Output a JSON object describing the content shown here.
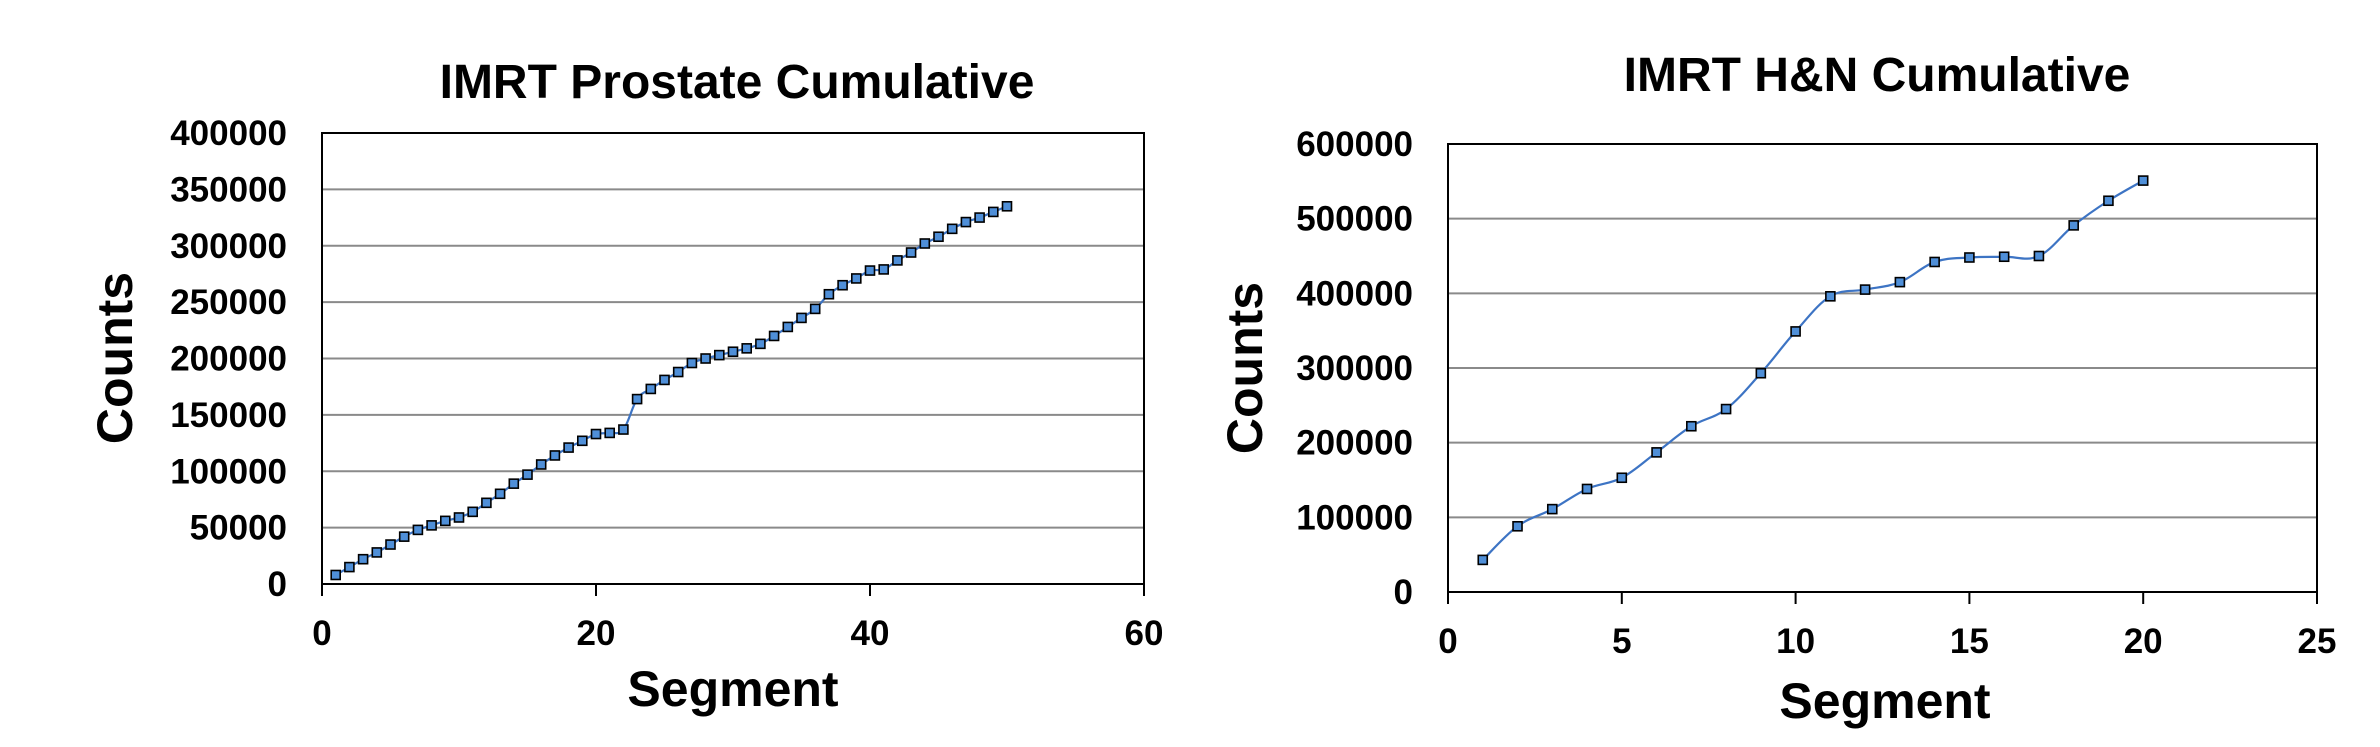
{
  "chart_data": [
    {
      "type": "line",
      "title": "IMRT Prostate Cumulative",
      "xlabel": "Segment",
      "ylabel": "Counts",
      "xlim": [
        0,
        60
      ],
      "ylim": [
        0,
        400000
      ],
      "xticks": [
        0,
        20,
        40,
        60
      ],
      "yticks": [
        0,
        50000,
        100000,
        150000,
        200000,
        250000,
        300000,
        350000,
        400000
      ],
      "xtick_labels": [
        "0",
        "20",
        "40",
        "60"
      ],
      "ytick_labels": [
        "0",
        "50000",
        "100000",
        "150000",
        "200000",
        "250000",
        "300000",
        "350000",
        "400000"
      ],
      "grid": "horizontal",
      "legend": "none",
      "series": [
        {
          "color": "#3d74c4",
          "marker_color": "#4f8fd8",
          "x": [
            1,
            2,
            3,
            4,
            5,
            6,
            7,
            8,
            9,
            10,
            11,
            12,
            13,
            14,
            15,
            16,
            17,
            18,
            19,
            20,
            21,
            22,
            23,
            24,
            25,
            26,
            27,
            28,
            29,
            30,
            31,
            32,
            33,
            34,
            35,
            36,
            37,
            38,
            39,
            40,
            41,
            42,
            43,
            44,
            45,
            46,
            47,
            48,
            49,
            50
          ],
          "y": [
            8000,
            15000,
            22000,
            28000,
            35000,
            42000,
            48000,
            52000,
            56000,
            59000,
            64000,
            72000,
            80000,
            89000,
            97000,
            106000,
            114000,
            121000,
            127000,
            133000,
            134000,
            137000,
            164000,
            173000,
            181000,
            188000,
            196000,
            200000,
            203000,
            206000,
            209000,
            213000,
            220000,
            228000,
            236000,
            244000,
            257000,
            265000,
            271000,
            278000,
            279000,
            287000,
            294000,
            302000,
            308000,
            315000,
            321000,
            325000,
            330000,
            335000
          ]
        }
      ]
    },
    {
      "type": "line",
      "title": "IMRT H&N Cumulative",
      "xlabel": "Segment",
      "ylabel": "Counts",
      "xlim": [
        0,
        25
      ],
      "ylim": [
        0,
        600000
      ],
      "xticks": [
        0,
        5,
        10,
        15,
        20,
        25
      ],
      "yticks": [
        0,
        100000,
        200000,
        300000,
        400000,
        500000,
        600000
      ],
      "xtick_labels": [
        "0",
        "5",
        "10",
        "15",
        "20",
        "25"
      ],
      "ytick_labels": [
        "0",
        "100000",
        "200000",
        "300000",
        "400000",
        "500000",
        "600000"
      ],
      "grid": "horizontal",
      "legend": "none",
      "series": [
        {
          "color": "#3d74c4",
          "marker_color": "#4f8fd8",
          "x": [
            1,
            2,
            3,
            4,
            5,
            6,
            7,
            8,
            9,
            10,
            11,
            12,
            13,
            14,
            15,
            16,
            17,
            18,
            19,
            20
          ],
          "y": [
            43000,
            88000,
            111000,
            138000,
            153000,
            187000,
            222000,
            245000,
            293000,
            349000,
            396000,
            405000,
            415000,
            442000,
            448000,
            449000,
            450000,
            491000,
            524000,
            551000
          ]
        }
      ]
    }
  ]
}
